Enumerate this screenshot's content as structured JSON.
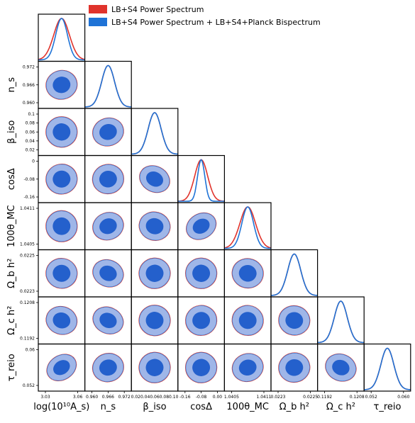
{
  "legend": [
    {
      "label": "LB+S4 Power Spectrum",
      "color": "#e0332c"
    },
    {
      "label": "LB+S4 Power Spectrum + LB+S4+Planck Bispectrum",
      "color": "#1f73d6"
    }
  ],
  "colors": {
    "ps_line": "#e0332c",
    "ps_fill_outer": "#f2a8a2",
    "ps_fill_inner": "#e0332c",
    "bs_line": "#1f73d6",
    "bs_fill_outer": "#9fb6e8",
    "bs_fill_inner": "#2460cc"
  },
  "chart_data": {
    "type": "triangle-corner-plot",
    "parameters": [
      {
        "name": "log(10^10 A_s)",
        "label": "log(10¹⁰A_s)",
        "ticks": [
          "3.03",
          "3.06"
        ]
      },
      {
        "name": "n_s",
        "label": "n_s",
        "ticks": [
          "0.960",
          "0.966",
          "0.972"
        ]
      },
      {
        "name": "beta_iso",
        "label": "β_iso",
        "ticks": [
          "0.02",
          "0.04",
          "0.06",
          "0.08",
          "0.1"
        ],
        "x_tick_text": "0.020.040.060.080.10"
      },
      {
        "name": "cos Delta",
        "label": "cosΔ",
        "ticks": [
          "-0.16",
          "-0.08",
          "0"
        ],
        "x_ticks": [
          "-0.16",
          "-0.08",
          "0.00"
        ]
      },
      {
        "name": "100 theta_MC",
        "label": "100θ_MC",
        "ticks": [
          "1.0405",
          "1.0411"
        ]
      },
      {
        "name": "Omega_b h^2",
        "label": "Ω_b h²",
        "ticks": [
          "0.0223",
          "0.0225"
        ]
      },
      {
        "name": "Omega_c h^2",
        "label": "Ω_c h²",
        "ticks": [
          "0.1192",
          "0.1208"
        ]
      },
      {
        "name": "tau_reio",
        "label": "τ_reio",
        "ticks": [
          "0.052",
          "0.06"
        ],
        "x_ticks": [
          "0.052",
          "0.060"
        ]
      }
    ],
    "series": [
      {
        "name": "LB+S4 Power Spectrum",
        "marginal_widths": [
          1.2,
          1.0,
          1.0,
          1.0,
          1.2,
          1.0,
          1.0,
          1.0
        ]
      },
      {
        "name": "LB+S4 Power Spectrum + LB+S4+Planck Bispectrum",
        "marginal_widths": [
          0.9,
          1.0,
          1.0,
          0.55,
          0.9,
          1.0,
          1.0,
          1.0
        ]
      }
    ],
    "marginal_centers": [
      0.5,
      0.5,
      0.5,
      0.5,
      0.5,
      0.5,
      0.5,
      0.5
    ],
    "pair_correlations": {
      "rows": [
        [
          0.0
        ],
        [
          0.25,
          0.0
        ],
        [
          -0.1,
          0.35,
          0.0
        ],
        [
          0.15,
          0.2,
          -0.55,
          0.0
        ],
        [
          0.05,
          0.4,
          -0.3,
          0.6,
          0.0
        ],
        [
          -0.15,
          -0.45,
          0.1,
          -0.1,
          -0.2,
          0.0
        ],
        [
          -0.35,
          -0.5,
          -0.1,
          0.15,
          -0.15,
          -0.2,
          0.0
        ],
        [
          0.65,
          0.3,
          0.1,
          0.1,
          0.35,
          0.2,
          -0.45,
          0.0
        ]
      ]
    }
  }
}
